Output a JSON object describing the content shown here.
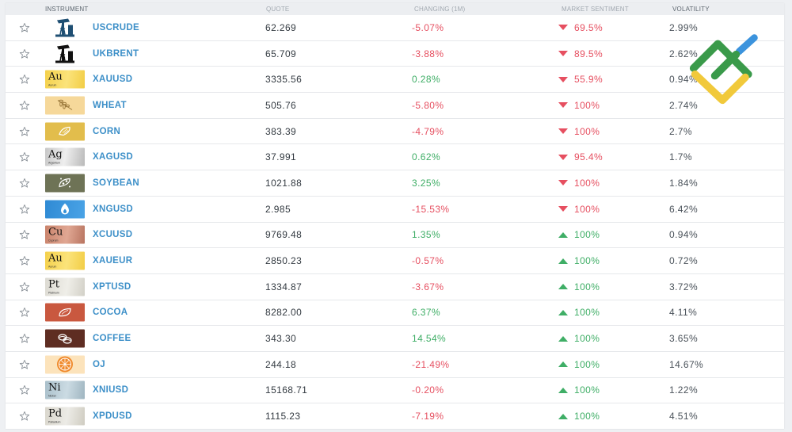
{
  "header": {
    "instrument": "INSTRUMENT",
    "quote": "QUOTE",
    "changing": "CHANGING (1M)",
    "sentiment": "MARKET SENTIMENT",
    "volatility": "VOLATILITY"
  },
  "colors": {
    "positive": "#3fae66",
    "negative": "#e64f60",
    "link": "#3c8fc8"
  },
  "rows": [
    {
      "name": "USCRUDE",
      "icon": "oil-pump-icon",
      "quote": "62.269",
      "change": "-5.07%",
      "change_dir": "neg",
      "sentiment": "69.5%",
      "sentiment_dir": "down",
      "volatility": "2.99%"
    },
    {
      "name": "UKBRENT",
      "icon": "oil-pump-icon",
      "quote": "65.709",
      "change": "-3.88%",
      "change_dir": "neg",
      "sentiment": "89.5%",
      "sentiment_dir": "down",
      "volatility": "2.62%"
    },
    {
      "name": "XAUUSD",
      "icon": "gold-element-icon",
      "symbol": "Au",
      "element": "Aurum",
      "quote": "3335.56",
      "change": "0.28%",
      "change_dir": "pos",
      "sentiment": "55.9%",
      "sentiment_dir": "down",
      "volatility": "0.94%"
    },
    {
      "name": "WHEAT",
      "icon": "wheat-icon",
      "quote": "505.76",
      "change": "-5.80%",
      "change_dir": "neg",
      "sentiment": "100%",
      "sentiment_dir": "down",
      "volatility": "2.74%"
    },
    {
      "name": "CORN",
      "icon": "corn-icon",
      "quote": "383.39",
      "change": "-4.79%",
      "change_dir": "neg",
      "sentiment": "100%",
      "sentiment_dir": "down",
      "volatility": "2.7%"
    },
    {
      "name": "XAGUSD",
      "icon": "silver-element-icon",
      "symbol": "Ag",
      "element": "Argentum",
      "quote": "37.991",
      "change": "0.62%",
      "change_dir": "pos",
      "sentiment": "95.4%",
      "sentiment_dir": "down",
      "volatility": "1.7%"
    },
    {
      "name": "SOYBEAN",
      "icon": "soybean-icon",
      "quote": "1021.88",
      "change": "3.25%",
      "change_dir": "pos",
      "sentiment": "100%",
      "sentiment_dir": "down",
      "volatility": "1.84%"
    },
    {
      "name": "XNGUSD",
      "icon": "gas-flame-icon",
      "quote": "2.985",
      "change": "-15.53%",
      "change_dir": "neg",
      "sentiment": "100%",
      "sentiment_dir": "down",
      "volatility": "6.42%"
    },
    {
      "name": "XCUUSD",
      "icon": "copper-element-icon",
      "symbol": "Cu",
      "element": "Cuprum",
      "quote": "9769.48",
      "change": "1.35%",
      "change_dir": "pos",
      "sentiment": "100%",
      "sentiment_dir": "up",
      "volatility": "0.94%"
    },
    {
      "name": "XAUEUR",
      "icon": "gold-element-icon",
      "symbol": "Au",
      "element": "Aurum",
      "quote": "2850.23",
      "change": "-0.57%",
      "change_dir": "neg",
      "sentiment": "100%",
      "sentiment_dir": "up",
      "volatility": "0.72%"
    },
    {
      "name": "XPTUSD",
      "icon": "platinum-element-icon",
      "symbol": "Pt",
      "element": "Platinum",
      "quote": "1334.87",
      "change": "-3.67%",
      "change_dir": "neg",
      "sentiment": "100%",
      "sentiment_dir": "up",
      "volatility": "3.72%"
    },
    {
      "name": "COCOA",
      "icon": "cocoa-bean-icon",
      "quote": "8282.00",
      "change": "6.37%",
      "change_dir": "pos",
      "sentiment": "100%",
      "sentiment_dir": "up",
      "volatility": "4.11%"
    },
    {
      "name": "COFFEE",
      "icon": "coffee-beans-icon",
      "quote": "343.30",
      "change": "14.54%",
      "change_dir": "pos",
      "sentiment": "100%",
      "sentiment_dir": "up",
      "volatility": "3.65%"
    },
    {
      "name": "OJ",
      "icon": "orange-slice-icon",
      "quote": "244.18",
      "change": "-21.49%",
      "change_dir": "neg",
      "sentiment": "100%",
      "sentiment_dir": "up",
      "volatility": "14.67%"
    },
    {
      "name": "XNIUSD",
      "icon": "nickel-element-icon",
      "symbol": "Ni",
      "element": "Nickel",
      "quote": "15168.71",
      "change": "-0.20%",
      "change_dir": "neg",
      "sentiment": "100%",
      "sentiment_dir": "up",
      "volatility": "1.22%"
    },
    {
      "name": "XPDUSD",
      "icon": "palladium-element-icon",
      "symbol": "Pd",
      "element": "Palladium",
      "quote": "1115.23",
      "change": "-7.19%",
      "change_dir": "neg",
      "sentiment": "100%",
      "sentiment_dir": "up",
      "volatility": "4.51%"
    }
  ]
}
